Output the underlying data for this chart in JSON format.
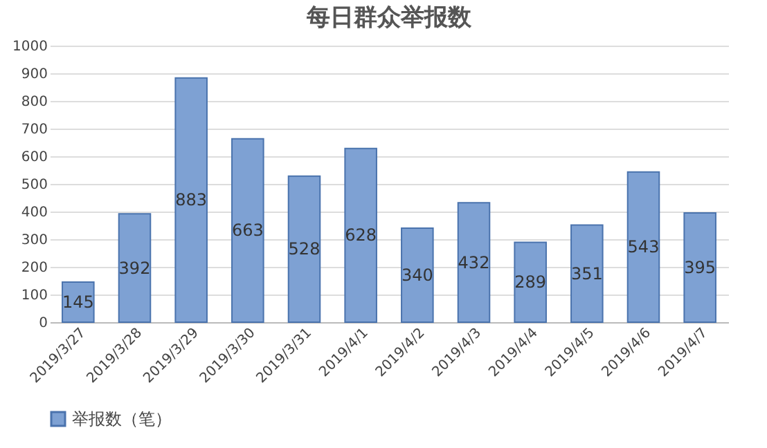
{
  "chart_data": {
    "type": "bar",
    "title": "每日群众举报数",
    "categories": [
      "2019/3/27",
      "2019/3/28",
      "2019/3/29",
      "2019/3/30",
      "2019/3/31",
      "2019/4/1",
      "2019/4/2",
      "2019/4/3",
      "2019/4/4",
      "2019/4/5",
      "2019/4/6",
      "2019/4/7"
    ],
    "series": [
      {
        "name": "举报数（笔）",
        "color": "#7ea1d3",
        "values": [
          145,
          392,
          883,
          663,
          528,
          628,
          340,
          432,
          289,
          351,
          543,
          395
        ]
      }
    ],
    "ylim": [
      0,
      1000
    ],
    "yticks": [
      0,
      100,
      200,
      300,
      400,
      500,
      600,
      700,
      800,
      900,
      1000
    ],
    "grid": "y",
    "legend": "bottom",
    "data_labels": true
  }
}
